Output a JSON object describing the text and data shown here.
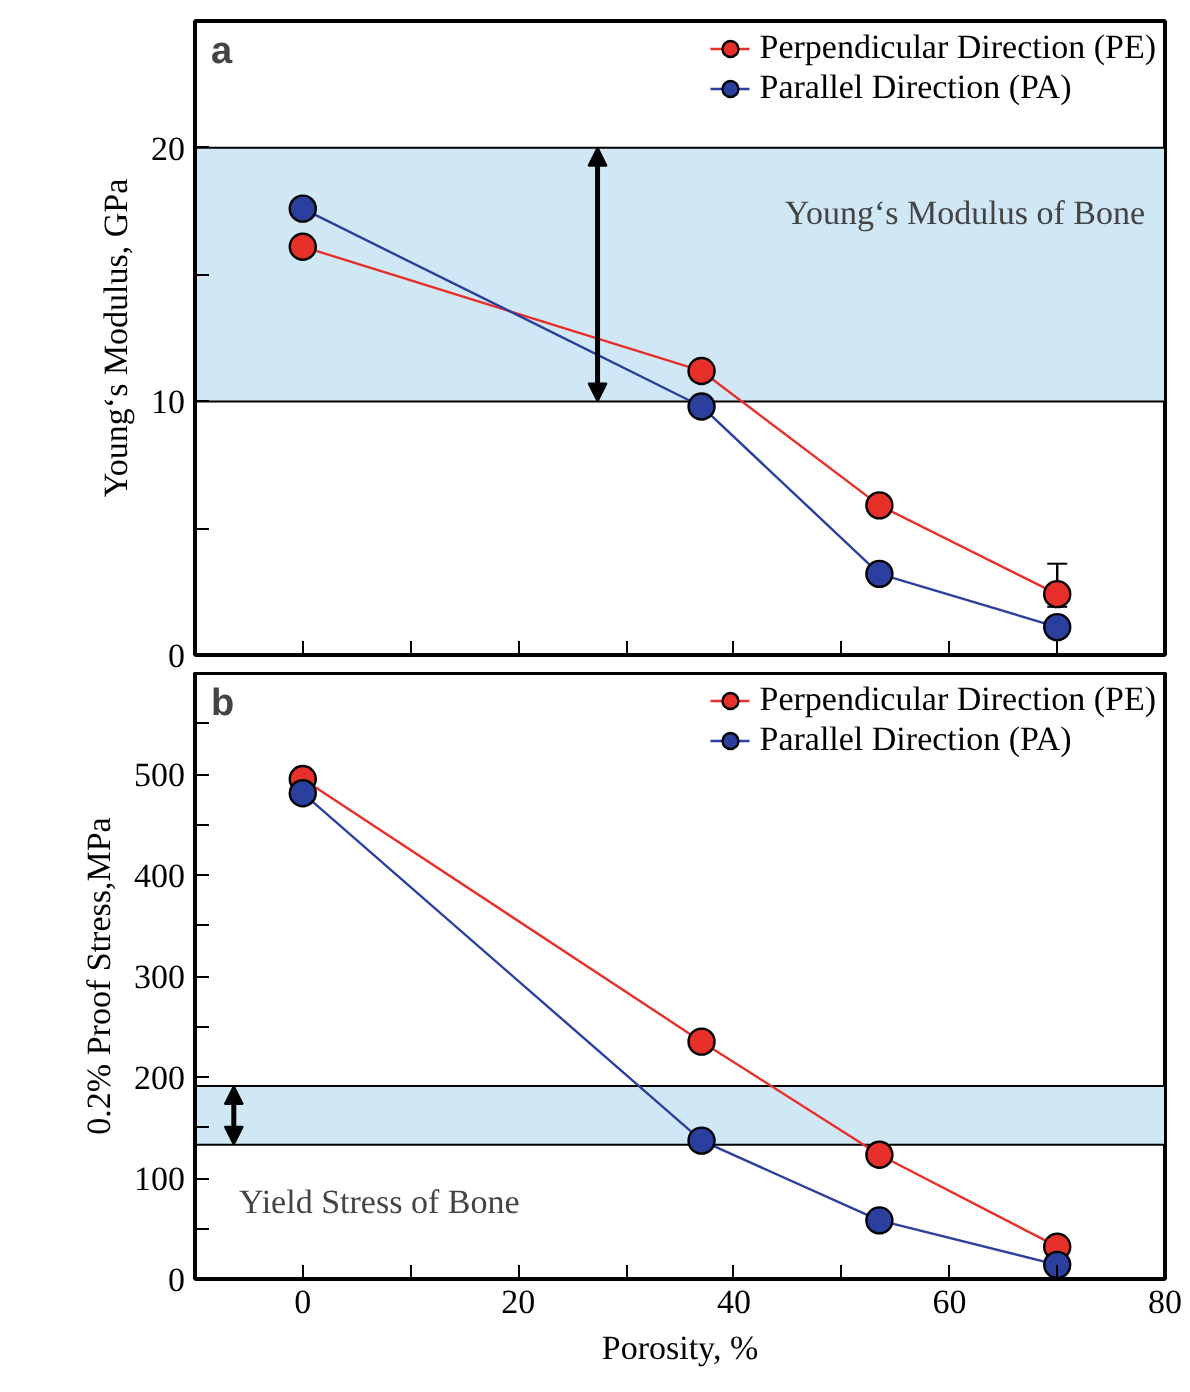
{
  "chart_data": [
    {
      "type": "line",
      "x": [
        0,
        37,
        53.5,
        70
      ],
      "ylabel": "Young‘s Modulus, GPa",
      "annotations": [
        "a"
      ],
      "series": [
        {
          "name": "Perpendicular Direction (PE)",
          "color": "#e8302a",
          "values": [
            16.1,
            11.2,
            5.9,
            2.4
          ],
          "errors": [
            null,
            null,
            null,
            [
              1.9,
              3.6
            ]
          ]
        },
        {
          "name": "Parallel Direction (PA)",
          "color": "#2b3f9e",
          "values": [
            17.6,
            9.8,
            3.2,
            1.1
          ]
        }
      ],
      "bands": [
        {
          "axis": "y",
          "from": 10,
          "to": 20,
          "label": "Young‘s Modulus of Bone",
          "color": "#d0e8f5"
        }
      ],
      "xlim": [
        -10,
        80
      ],
      "xticks": [
        0,
        {
          "value": 10,
          "label": null
        },
        20,
        {
          "value": 30,
          "label": null
        },
        40,
        {
          "value": 50,
          "label": null
        },
        60,
        {
          "value": 70,
          "label": null
        },
        80
      ],
      "ylim": [
        0,
        25
      ],
      "yticks": [
        0,
        {
          "value": 5,
          "label": null
        },
        10,
        {
          "value": 15,
          "label": null
        },
        20
      ],
      "tick_labels": "y",
      "grid": false,
      "legend": "top right",
      "marker": "circle",
      "line_style": "solid"
    },
    {
      "type": "line",
      "x": [
        0,
        37,
        53.5,
        70
      ],
      "xlabel": "Porosity, %",
      "ylabel": "0.2% Proof Stress,MPa",
      "annotations": [
        "b"
      ],
      "series": [
        {
          "name": "Perpendicular Direction (PE)",
          "color": "#e8302a",
          "values": [
            495,
            235,
            123,
            32
          ]
        },
        {
          "name": "Parallel Direction (PA)",
          "color": "#2b3f9e",
          "values": [
            481,
            137,
            58,
            14
          ]
        }
      ],
      "bands": [
        {
          "axis": "y",
          "from": 133,
          "to": 191,
          "label": "Yield Stress of Bone",
          "color": "#d0e8f5"
        }
      ],
      "xlim": [
        -10,
        80
      ],
      "xticks": [
        0,
        {
          "value": 10,
          "label": null
        },
        20,
        {
          "value": 30,
          "label": null
        },
        40,
        {
          "value": 50,
          "label": null
        },
        60,
        {
          "value": 70,
          "label": null
        },
        80
      ],
      "ylim": [
        0,
        600
      ],
      "yticks": [
        0,
        {
          "value": 50,
          "label": null
        },
        100,
        {
          "value": 150,
          "label": null
        },
        200,
        {
          "value": 250,
          "label": null
        },
        300,
        {
          "value": 350,
          "label": null
        },
        400,
        {
          "value": 450,
          "label": null
        },
        500,
        {
          "value": 550,
          "label": null
        }
      ],
      "grid": false,
      "legend": "top right",
      "marker": "circle",
      "line_style": "solid"
    }
  ]
}
